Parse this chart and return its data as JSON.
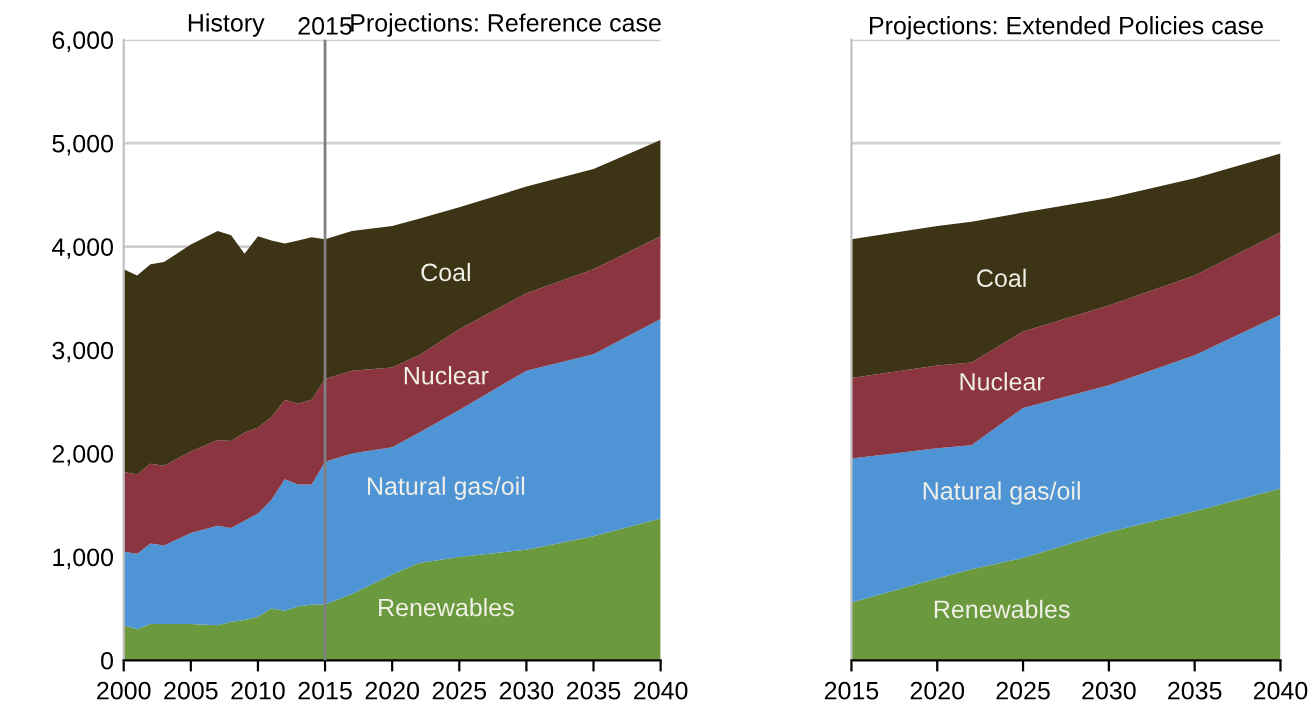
{
  "chart_data": [
    {
      "type": "area",
      "stacked": true,
      "x": [
        2000,
        2001,
        2002,
        2003,
        2005,
        2007,
        2008,
        2009,
        2010,
        2011,
        2012,
        2013,
        2014,
        2015,
        2017,
        2020,
        2022,
        2025,
        2030,
        2035,
        2040
      ],
      "series": [
        {
          "name": "Renewables",
          "color": "#6b9a3e",
          "values": [
            340,
            300,
            350,
            350,
            350,
            340,
            370,
            390,
            420,
            500,
            480,
            520,
            540,
            540,
            640,
            830,
            940,
            1000,
            1070,
            1200,
            1370
          ]
        },
        {
          "name": "Natural gas/oil",
          "color": "#4f94d4",
          "values": [
            710,
            730,
            780,
            760,
            880,
            960,
            910,
            960,
            1000,
            1050,
            1270,
            1180,
            1160,
            1380,
            1360,
            1230,
            1260,
            1420,
            1730,
            1760,
            1930
          ]
        },
        {
          "name": "Nuclear",
          "color": "#8b3540",
          "values": [
            770,
            770,
            770,
            770,
            790,
            830,
            840,
            850,
            830,
            800,
            770,
            780,
            820,
            800,
            800,
            770,
            750,
            780,
            750,
            820,
            800
          ]
        },
        {
          "name": "Coal",
          "color": "#3d3416",
          "values": [
            1960,
            1920,
            1930,
            1970,
            2000,
            2020,
            1990,
            1730,
            1850,
            1710,
            1510,
            1580,
            1570,
            1350,
            1350,
            1370,
            1320,
            1180,
            1030,
            970,
            930
          ]
        }
      ],
      "xlim": [
        2000,
        2040
      ],
      "xticks": [
        2000,
        2005,
        2010,
        2015,
        2020,
        2025,
        2030,
        2035,
        2040
      ],
      "ylim": [
        0,
        6000
      ],
      "yticks": [
        {
          "value": 0,
          "label": "0"
        },
        {
          "value": 1000,
          "label": "1,000"
        },
        {
          "value": 2000,
          "label": "2,000"
        },
        {
          "value": 3000,
          "label": "3,000"
        },
        {
          "value": 4000,
          "label": "4,000"
        },
        {
          "value": 5000,
          "label": "5,000"
        },
        {
          "value": 6000,
          "label": "6,000"
        }
      ],
      "grid": "y",
      "legend": false,
      "ref_lines": [
        {
          "axis": "x",
          "value": 2015,
          "label": "2015",
          "color": "#808080"
        }
      ],
      "annotations": [
        "History",
        "Projections: Reference case"
      ]
    },
    {
      "type": "area",
      "stacked": true,
      "title": "Projections: Extended Policies case",
      "x": [
        2015,
        2020,
        2022,
        2025,
        2030,
        2035,
        2040
      ],
      "series": [
        {
          "name": "Renewables",
          "color": "#6b9a3e",
          "values": [
            560,
            790,
            880,
            990,
            1240,
            1440,
            1660
          ]
        },
        {
          "name": "Natural gas/oil",
          "color": "#4f94d4",
          "values": [
            1390,
            1260,
            1200,
            1450,
            1420,
            1510,
            1680
          ]
        },
        {
          "name": "Nuclear",
          "color": "#8b3540",
          "values": [
            780,
            800,
            800,
            740,
            770,
            770,
            800
          ]
        },
        {
          "name": "Coal",
          "color": "#3d3416",
          "values": [
            1340,
            1350,
            1360,
            1150,
            1040,
            940,
            760
          ]
        }
      ],
      "xlim": [
        2015,
        2040
      ],
      "xticks": [
        2015,
        2020,
        2025,
        2030,
        2035,
        2040
      ],
      "ylim": [
        0,
        6000
      ],
      "yticks": [
        0,
        1000,
        2000,
        3000,
        4000,
        5000,
        6000
      ],
      "grid": "y",
      "legend": false,
      "tick_labels": "x"
    }
  ]
}
